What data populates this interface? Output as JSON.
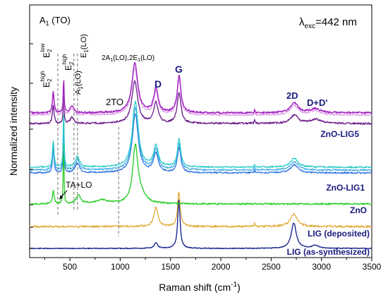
{
  "chart_data": {
    "type": "line",
    "title": "",
    "xlabel_main": "Raman shift (cm",
    "xlabel_sup": "-1",
    "xlabel_end": ")",
    "ylabel": "Normalized intensity",
    "xlim": [
      100,
      3500
    ],
    "x_ticks": [
      500,
      1000,
      1500,
      2000,
      2500,
      3000,
      3500
    ],
    "y_ticks_shown": false,
    "grid": false,
    "excitation_label": {
      "prefix": "λ",
      "sub": "exc",
      "value": "=442 nm"
    },
    "reference_lines_cm": [
      {
        "x": 380,
        "label": "A1(TO) / E2 low"
      },
      {
        "x": 540,
        "label": "E2 high-low"
      },
      {
        "x": 575,
        "label": "A1(LO)"
      },
      {
        "x": 585,
        "label": "E1(LO)"
      },
      {
        "x": 985,
        "label": "2TO"
      }
    ],
    "peak_labels": {
      "a1to": "A",
      "a1to_sub": "1",
      "a1to_end": " (TO)",
      "e2high": "E",
      "e2high_sup": "high",
      "e2high_sub": "2",
      "e2low": "E",
      "e2low_sup": "low",
      "e2low_sub": "2",
      "e2hl": "E",
      "e2hl_sup": "high",
      "e2hl_sub": "2",
      "a1lo": "A",
      "a1lo_sub": "1",
      "a1lo_end": "(LO)",
      "e1lo": "E",
      "e1lo_sub": "1",
      "e1lo_end": "(LO)",
      "two_a1lo": "2A",
      "two_a1lo_sub": "1",
      "two_a1lo_mid": "(LO),2E",
      "two_a1lo_sub2": "1",
      "two_a1lo_end": "(LO)",
      "two_to": "2TO",
      "d": "D",
      "g": "G",
      "two_d": "2D",
      "d_dprime": "D+D'",
      "ta_lo": "TA+LO"
    },
    "series_labels": [
      "ZnO-LIG5",
      "ZnO-LIG1",
      "ZnO",
      "LIG (deposited)",
      "LIG (as-synthesized)"
    ],
    "colors": {
      "lig_as": "#0d1c8c",
      "lig_dep": "#e0a830",
      "zno": "#22cc22",
      "lig1_a": "#2a6ee0",
      "lig1_b": "#3aa8e0",
      "lig1_c": "#22c8c8",
      "lig5_a": "#6a1a8a",
      "lig5_b": "#e0a8e8",
      "lig5_c": "#a020c0",
      "label_dark": "#1a1a80"
    }
  }
}
